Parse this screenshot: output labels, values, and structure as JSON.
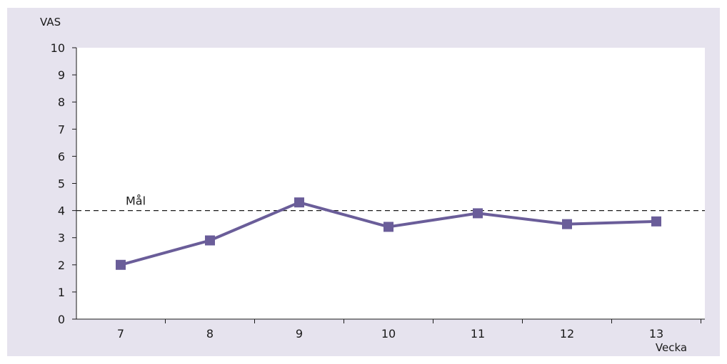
{
  "chart_data": {
    "type": "line",
    "title": "",
    "xlabel": "Vecka",
    "ylabel": "VAS",
    "x": [
      "7",
      "8",
      "9",
      "10",
      "11",
      "12",
      "13"
    ],
    "series": [
      {
        "values": [
          2.0,
          2.9,
          4.3,
          3.4,
          3.9,
          3.5,
          3.6
        ]
      }
    ],
    "ylim": [
      0,
      10
    ],
    "yticks": [
      "0",
      "1",
      "2",
      "3",
      "4",
      "5",
      "6",
      "7",
      "8",
      "9",
      "10"
    ],
    "reference_line": {
      "label": "Mål",
      "value": 4,
      "style": "dashed"
    },
    "grid": false,
    "legend": "none",
    "colors": {
      "series": "#6a5d99",
      "background": "#e6e3ee",
      "plot_area": "#ffffff",
      "axis": "#1a1a1a"
    }
  }
}
